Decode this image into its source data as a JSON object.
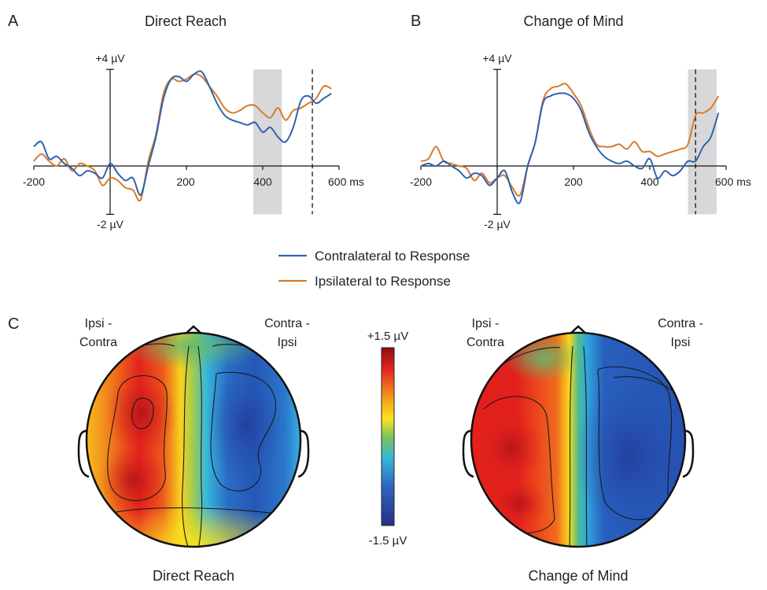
{
  "panels": {
    "a": {
      "letter": "A",
      "title": "Direct Reach"
    },
    "b": {
      "letter": "B",
      "title": "Change of Mind"
    },
    "c": {
      "letter": "C",
      "left_label": "Direct Reach",
      "right_label": "Change of Mind"
    }
  },
  "axis": {
    "ytop": "+4 µV",
    "ybottom": "-2 µV",
    "ticks": [
      "-200",
      "200",
      "400",
      "600 ms"
    ]
  },
  "legend": {
    "contra": "Contralateral to Response",
    "ipsi": "Ipsilateral to Response"
  },
  "scalp": {
    "ipsi_contra": [
      "Ipsi -",
      "Contra"
    ],
    "contra_ipsi": [
      "Contra -",
      "Ipsi"
    ],
    "colorbar_max": "+1.5 µV",
    "colorbar_min": "-1.5 µV"
  },
  "colors": {
    "contra": "#2d63ae",
    "ipsi": "#d97a2b",
    "shade": "#d8d8da"
  },
  "chart_data": [
    {
      "type": "line",
      "title": "Direct Reach",
      "x_unit": "ms",
      "xlim": [
        -200,
        600
      ],
      "ylim": [
        -2,
        4
      ],
      "y_unit": "µV",
      "shaded_window": [
        375,
        450
      ],
      "dashed_line_x": 530,
      "series": [
        {
          "name": "Contralateral to Response",
          "x": [
            -200,
            -180,
            -160,
            -140,
            -120,
            -100,
            -80,
            -60,
            -40,
            -20,
            0,
            20,
            40,
            60,
            80,
            100,
            120,
            140,
            160,
            180,
            200,
            220,
            240,
            260,
            280,
            300,
            320,
            340,
            360,
            380,
            400,
            420,
            440,
            460,
            480,
            500,
            520,
            540,
            560,
            580
          ],
          "y": [
            0.8,
            1.0,
            0.3,
            0.4,
            0.1,
            -0.1,
            -0.4,
            -0.2,
            -0.3,
            -0.5,
            0.1,
            -0.3,
            -0.6,
            -0.5,
            -1.2,
            0.0,
            1.2,
            2.8,
            3.6,
            3.7,
            3.5,
            3.8,
            3.9,
            3.3,
            2.6,
            2.1,
            1.9,
            1.8,
            1.7,
            1.8,
            1.4,
            1.6,
            1.2,
            1.0,
            1.6,
            2.7,
            2.9,
            2.6,
            2.8,
            3.0
          ]
        },
        {
          "name": "Ipsilateral to Response",
          "x": [
            -200,
            -180,
            -160,
            -140,
            -120,
            -100,
            -80,
            -60,
            -40,
            -20,
            0,
            20,
            40,
            60,
            80,
            100,
            120,
            140,
            160,
            180,
            200,
            220,
            240,
            260,
            280,
            300,
            320,
            340,
            360,
            380,
            400,
            420,
            440,
            460,
            480,
            500,
            520,
            540,
            560,
            580
          ],
          "y": [
            0.2,
            0.5,
            0.2,
            0.0,
            0.3,
            -0.2,
            0.1,
            0.0,
            -0.2,
            -0.8,
            -0.5,
            -0.6,
            -0.9,
            -1.0,
            -1.4,
            0.2,
            1.3,
            3.0,
            3.6,
            3.5,
            3.6,
            3.8,
            3.7,
            3.3,
            2.9,
            2.4,
            2.2,
            2.3,
            2.5,
            2.5,
            2.2,
            2.0,
            2.4,
            1.9,
            2.3,
            2.4,
            2.6,
            2.8,
            3.3,
            3.2
          ]
        }
      ]
    },
    {
      "type": "line",
      "title": "Change of Mind",
      "x_unit": "ms",
      "xlim": [
        -200,
        600
      ],
      "ylim": [
        -2,
        4
      ],
      "y_unit": "µV",
      "shaded_window": [
        500,
        575
      ],
      "dashed_line_x": 520,
      "series": [
        {
          "name": "Contralateral to Response",
          "x": [
            -200,
            -180,
            -160,
            -140,
            -120,
            -100,
            -80,
            -60,
            -40,
            -20,
            0,
            20,
            40,
            60,
            80,
            100,
            120,
            140,
            160,
            180,
            200,
            220,
            240,
            260,
            280,
            300,
            320,
            340,
            360,
            380,
            400,
            420,
            440,
            460,
            480,
            500,
            520,
            540,
            560,
            580
          ],
          "y": [
            0.0,
            0.1,
            0.0,
            0.2,
            0.0,
            -0.2,
            -0.5,
            -0.3,
            -0.4,
            -0.8,
            -0.5,
            -0.2,
            -1.1,
            -1.5,
            0.0,
            1.0,
            2.6,
            2.9,
            3.0,
            3.0,
            2.8,
            2.3,
            1.4,
            0.8,
            0.4,
            0.2,
            0.1,
            0.2,
            0.0,
            -0.1,
            0.3,
            -0.5,
            -0.2,
            -0.4,
            -0.2,
            0.2,
            0.2,
            0.8,
            1.2,
            2.2
          ]
        },
        {
          "name": "Ipsilateral to Response",
          "x": [
            -200,
            -180,
            -160,
            -140,
            -120,
            -100,
            -80,
            -60,
            -40,
            -20,
            0,
            20,
            40,
            60,
            80,
            100,
            120,
            140,
            160,
            180,
            200,
            220,
            240,
            260,
            280,
            300,
            320,
            340,
            360,
            380,
            400,
            420,
            440,
            460,
            480,
            500,
            520,
            540,
            560,
            580
          ],
          "y": [
            0.2,
            0.3,
            0.8,
            0.2,
            0.1,
            0.0,
            -0.1,
            -0.6,
            -0.3,
            -0.7,
            -0.5,
            -0.4,
            -0.9,
            -1.2,
            0.0,
            1.0,
            2.7,
            3.2,
            3.3,
            3.4,
            3.0,
            2.5,
            1.6,
            0.9,
            0.8,
            0.8,
            0.9,
            0.7,
            1.0,
            0.6,
            0.6,
            0.4,
            0.5,
            0.6,
            0.7,
            0.9,
            2.1,
            2.2,
            2.4,
            2.9
          ]
        }
      ]
    }
  ]
}
